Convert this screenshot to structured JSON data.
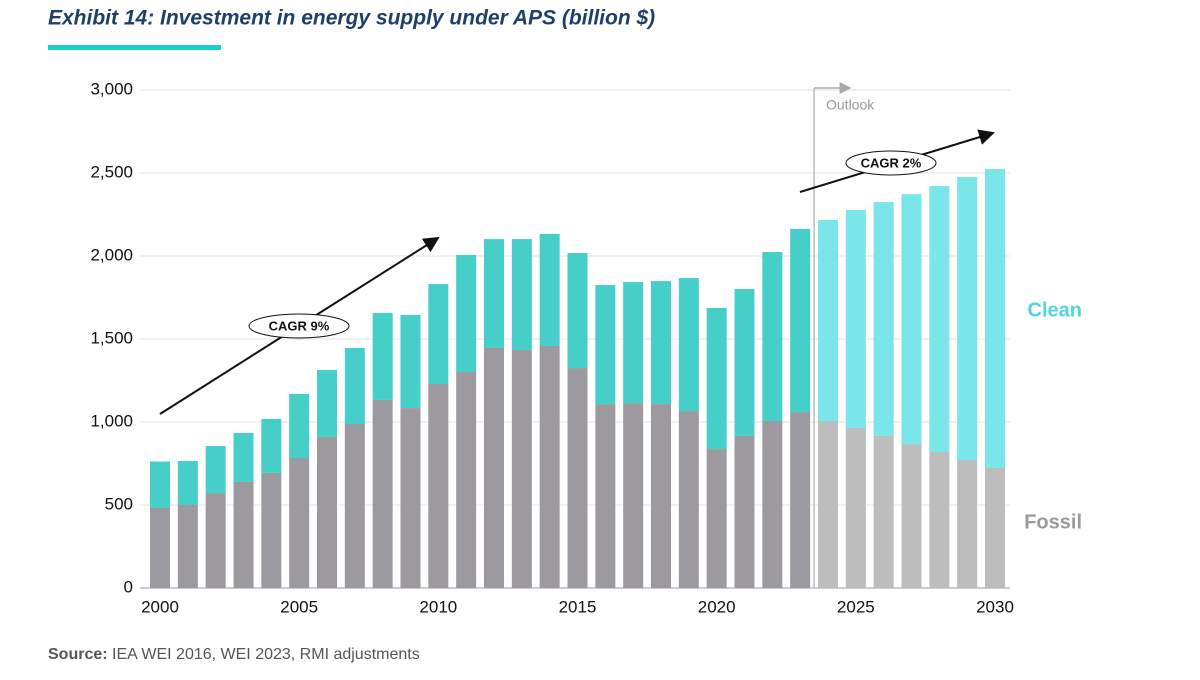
{
  "title": "Exhibit 14: Investment in energy supply under APS (billion $)",
  "source": {
    "label": "Source:",
    "text": "IEA WEI 2016, WEI 2023, RMI adjustments"
  },
  "chart_data": {
    "type": "stacked_bar",
    "categories": [
      "2000",
      null,
      null,
      null,
      null,
      "2005",
      null,
      null,
      null,
      null,
      "2010",
      null,
      null,
      null,
      null,
      "2015",
      null,
      null,
      null,
      null,
      "2020",
      null,
      null,
      null,
      null,
      "2025",
      null,
      null,
      null,
      null,
      "2030"
    ],
    "series": [
      {
        "name": "Fossil",
        "color": "#9a9a9a",
        "colors": [
          "#9c9a9f",
          "#9c9a9f",
          "#9c9a9f",
          "#9c9a9f",
          "#9c9a9f",
          "#9c9a9f",
          "#9c9a9f",
          "#9c9a9f",
          "#9c9a9f",
          "#9c9a9f",
          "#9c9a9f",
          "#9c9a9f",
          "#9c9a9f",
          "#9c9a9f",
          "#9c9a9f",
          "#9c9a9f",
          "#9c9a9f",
          "#9c9a9f",
          "#9c9a9f",
          "#9c9a9f",
          "#9c9a9f",
          "#9c9a9f",
          "#9c9a9f",
          "#9c9a9f",
          "#bdbdbd",
          "#bdbdbd",
          "#bdbdbd",
          "#bdbdbd",
          "#bdbdbd",
          "#bdbdbd",
          "#bdbdbd"
        ],
        "values": [
          482,
          500,
          572,
          639,
          693,
          783,
          910,
          988,
          1133,
          1084,
          1229,
          1301,
          1446,
          1434,
          1458,
          1325,
          1108,
          1114,
          1108,
          1066,
          837,
          916,
          1006,
          1060,
          1006,
          964,
          916,
          867,
          819,
          771,
          723
        ]
      },
      {
        "name": "Clean",
        "color": "#4fd6d6",
        "colors": [
          "#45cfc8",
          "#45cfc8",
          "#45cfc8",
          "#45cfc8",
          "#45cfc8",
          "#45cfc8",
          "#45cfc8",
          "#45cfc8",
          "#45cfc8",
          "#45cfc8",
          "#45cfc8",
          "#45cfc8",
          "#45cfc8",
          "#45cfc8",
          "#45cfc8",
          "#45cfc8",
          "#45cfc8",
          "#45cfc8",
          "#45cfc8",
          "#45cfc8",
          "#45cfc8",
          "#45cfc8",
          "#45cfc8",
          "#45cfc8",
          "#7be6e9",
          "#7be6e9",
          "#7be6e9",
          "#7be6e9",
          "#7be6e9",
          "#7be6e9",
          "#7be6e9"
        ],
        "values": [
          280,
          265,
          283,
          295,
          325,
          386,
          403,
          458,
          524,
          561,
          602,
          705,
          656,
          668,
          675,
          693,
          717,
          729,
          741,
          801,
          850,
          885,
          1018,
          1103,
          1211,
          1313,
          1409,
          1506,
          1603,
          1705,
          1801
        ]
      }
    ],
    "ylim": [
      0,
      3000
    ],
    "yticks": [
      0,
      500,
      {
        "value": 1000,
        "label": "1,000"
      },
      {
        "value": 1500,
        "label": "1,500"
      },
      {
        "value": 2000,
        "label": "2,000"
      },
      {
        "value": 2500,
        "label": "2,500"
      },
      {
        "value": 3000,
        "label": "3,000"
      }
    ],
    "grid": true,
    "annotations": [
      "CAGR 9%",
      "CAGR 2%",
      "Outlook"
    ]
  }
}
